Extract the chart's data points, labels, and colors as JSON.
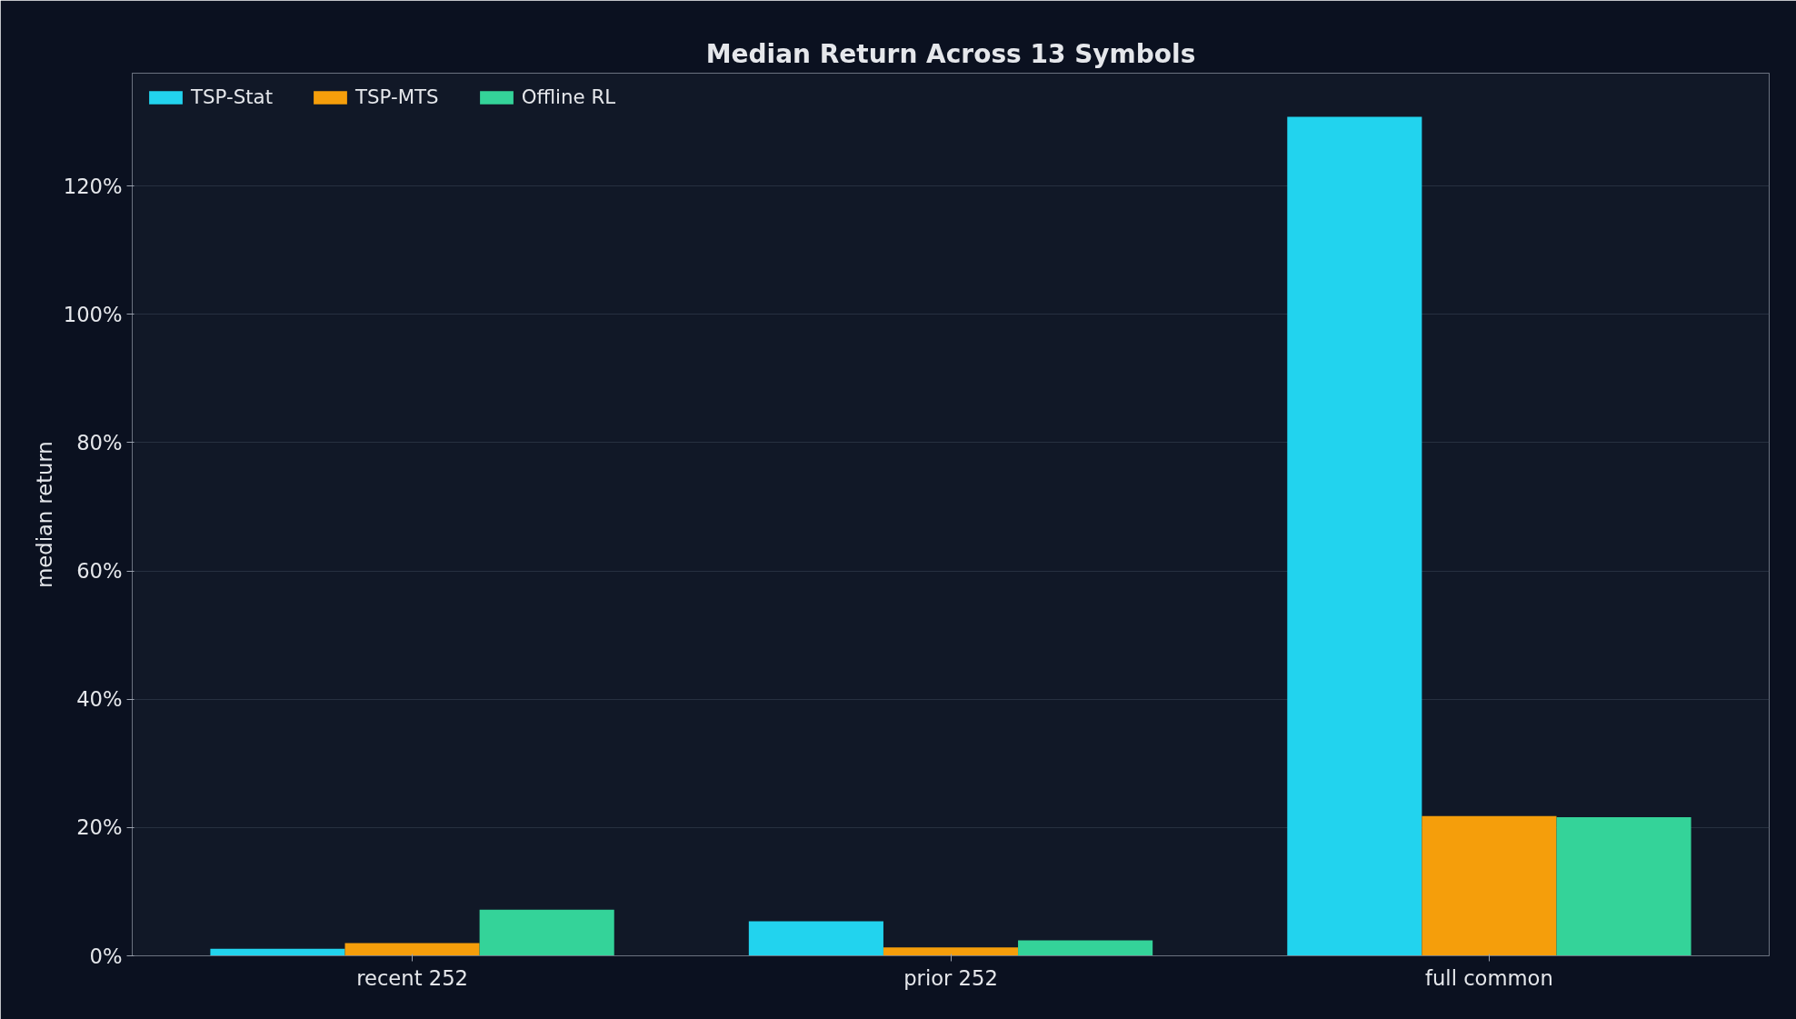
{
  "chart_data": {
    "type": "bar",
    "title": "Median Return Across 13 Symbols",
    "ylabel": "median return",
    "categories": [
      "recent 252",
      "prior 252",
      "full common"
    ],
    "series": [
      {
        "name": "TSP-Stat",
        "color": "#22d3ee",
        "values": [
          1.1,
          5.4,
          130.8
        ]
      },
      {
        "name": "TSP-MTS",
        "color": "#f59e0b",
        "values": [
          2.0,
          1.3,
          21.8
        ]
      },
      {
        "name": "Offline RL",
        "color": "#34d399",
        "values": [
          7.2,
          2.4,
          21.6
        ]
      }
    ],
    "ylim": [
      0,
      137.6
    ],
    "yticks": [
      {
        "value": 0,
        "label": "0%"
      },
      {
        "value": 20,
        "label": "20%"
      },
      {
        "value": 40,
        "label": "40%"
      },
      {
        "value": 60,
        "label": "60%"
      },
      {
        "value": 80,
        "label": "80%"
      },
      {
        "value": 100,
        "label": "100%"
      },
      {
        "value": 120,
        "label": "120%"
      }
    ],
    "grid": "y",
    "legend": "top left"
  }
}
